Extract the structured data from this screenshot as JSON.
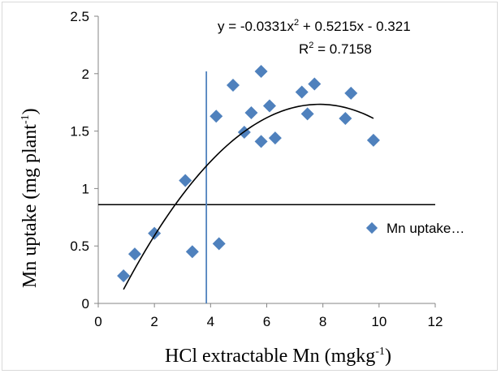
{
  "chart_data": {
    "type": "scatter",
    "xlabel_main": "HCl extractable Mn (mgkg",
    "xlabel_sup": "-1",
    "xlabel_end": ")",
    "ylabel_main": "Mn uptake (mg plant",
    "ylabel_sup": "-1",
    "ylabel_end": ")",
    "xlim": [
      0,
      12
    ],
    "ylim": [
      0,
      2.5
    ],
    "x_ticks": [
      "0",
      "2",
      "4",
      "6",
      "8",
      "10",
      "12"
    ],
    "y_ticks": [
      "0",
      "0.5",
      "1",
      "1.5",
      "2",
      "2.5"
    ],
    "grid": false,
    "legend_position": "right",
    "series": [
      {
        "name": "Mn uptake…",
        "color": "#4f81bd",
        "marker": "diamond",
        "points": [
          {
            "x": 0.9,
            "y": 0.24
          },
          {
            "x": 1.3,
            "y": 0.43
          },
          {
            "x": 2.0,
            "y": 0.61
          },
          {
            "x": 3.1,
            "y": 1.07
          },
          {
            "x": 3.35,
            "y": 0.45
          },
          {
            "x": 4.2,
            "y": 1.63
          },
          {
            "x": 4.3,
            "y": 0.52
          },
          {
            "x": 4.8,
            "y": 1.9
          },
          {
            "x": 5.2,
            "y": 1.49
          },
          {
            "x": 5.45,
            "y": 1.66
          },
          {
            "x": 5.8,
            "y": 2.02
          },
          {
            "x": 5.8,
            "y": 1.41
          },
          {
            "x": 6.1,
            "y": 1.72
          },
          {
            "x": 6.3,
            "y": 1.44
          },
          {
            "x": 7.25,
            "y": 1.84
          },
          {
            "x": 7.45,
            "y": 1.65
          },
          {
            "x": 7.7,
            "y": 1.91
          },
          {
            "x": 8.8,
            "y": 1.61
          },
          {
            "x": 9.0,
            "y": 1.83
          },
          {
            "x": 9.8,
            "y": 1.42
          }
        ]
      }
    ],
    "trendline": {
      "type": "polynomial",
      "coefficients": [
        -0.0331,
        0.5215,
        -0.321
      ],
      "x_range": [
        0.9,
        9.8
      ],
      "color": "#000000"
    },
    "reference_lines": {
      "horizontal_y": 0.86,
      "horizontal_color": "#000000",
      "vertical_x": 3.85,
      "vertical_y_range": [
        0,
        2.02
      ],
      "vertical_color": "#4f81bd"
    },
    "annotations": {
      "equation_parts": [
        "y = -0.0331x",
        "2",
        " + 0.5215x - 0.321"
      ],
      "r2_parts": [
        "R",
        "2",
        " = 0.7158"
      ]
    }
  }
}
